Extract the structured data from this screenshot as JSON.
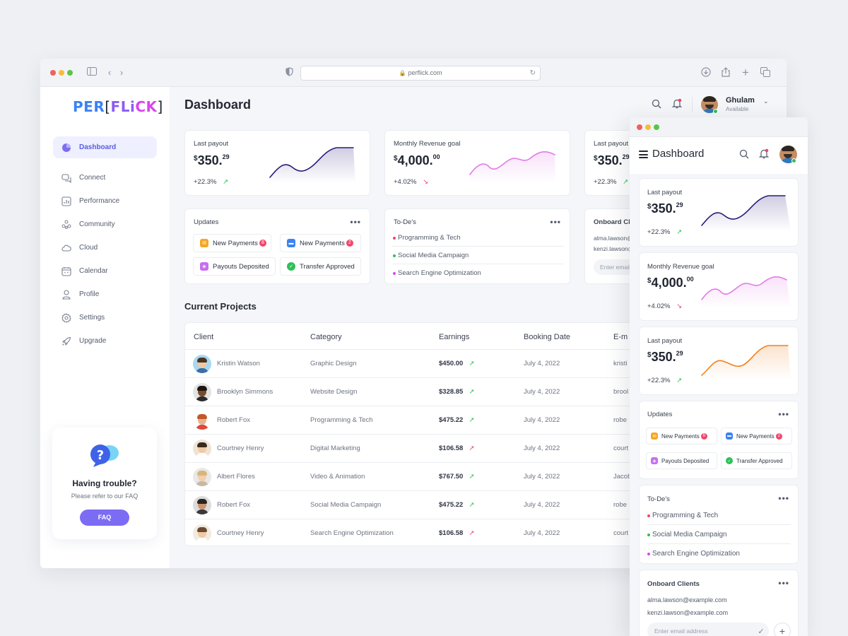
{
  "browser": {
    "url": "perflick.com"
  },
  "brand": {
    "part1": "PER",
    "part2": "FLi",
    "part3": "CK"
  },
  "sidebar": {
    "items": [
      {
        "label": "Dashboard",
        "icon": "pie-chart-icon"
      },
      {
        "label": "Connect",
        "icon": "chat-bubbles-icon"
      },
      {
        "label": "Performance",
        "icon": "bar-chart-icon"
      },
      {
        "label": "Community",
        "icon": "people-icon"
      },
      {
        "label": "Cloud",
        "icon": "cloud-icon"
      },
      {
        "label": "Calendar",
        "icon": "calendar-icon"
      },
      {
        "label": "Profile",
        "icon": "user-icon"
      },
      {
        "label": "Settings",
        "icon": "gear-icon"
      },
      {
        "label": "Upgrade",
        "icon": "rocket-icon"
      }
    ],
    "help": {
      "title": "Having trouble?",
      "text": "Please refer to our FAQ",
      "button": "FAQ"
    }
  },
  "header": {
    "title": "Dashboard",
    "user_name": "Ghulam",
    "user_status": "Available"
  },
  "kpis": [
    {
      "label": "Last payout",
      "currency": "$",
      "whole": "350.",
      "cents": "29",
      "change": "+22.3%",
      "trend": "up",
      "color": "#2a1b7a",
      "trend_color": "#2ec05a"
    },
    {
      "label": "Monthly Revenue goal",
      "currency": "$",
      "whole": "4,000.",
      "cents": "00",
      "change": "+4.02%",
      "trend": "down",
      "color": "#e27ae8",
      "trend_color": "#f0466b"
    },
    {
      "label": "Last payout",
      "currency": "$",
      "whole": "350.",
      "cents": "29",
      "change": "+22.3%",
      "trend": "up",
      "color": "#f0811f",
      "trend_color": "#2ec05a"
    }
  ],
  "updates": {
    "title": "Updates",
    "chips": [
      {
        "label": "New Payments",
        "badge": "8",
        "icon": "mail-icon",
        "color": "#f5a623"
      },
      {
        "label": "New Payments",
        "badge": "2",
        "icon": "card-icon",
        "color": "#3b82f6"
      },
      {
        "label": "Payouts Deposited",
        "icon": "ticket-icon",
        "color": "#c86ef0"
      },
      {
        "label": "Transfer Approved",
        "icon": "check-badge-icon",
        "color": "#2ec05a"
      }
    ]
  },
  "todos": {
    "title": "To-De's",
    "items": [
      {
        "label": "Programming & Tech",
        "color": "#f0466b"
      },
      {
        "label": "Social Media Campaign",
        "color": "#2ec05a"
      },
      {
        "label": "Search Engine Optimization",
        "color": "#d946ef"
      }
    ]
  },
  "onboard": {
    "title_truncated": "Onboard Cli",
    "title": "Onboard Clients",
    "emails_truncated": [
      "alma.lawson@",
      "kenzi.lawson@"
    ],
    "emails": [
      "alma.lawson@example.com",
      "kenzi.lawson@example.com"
    ],
    "placeholder_truncated": "Enter email",
    "placeholder": "Enter email address"
  },
  "projects": {
    "title": "Current Projects",
    "columns": [
      "Client",
      "Category",
      "Earnings",
      "Booking Date",
      "E-m"
    ],
    "rows": [
      {
        "client": "Kristin Watson",
        "category": "Graphic Design",
        "earnings": "$450.00",
        "trend": "up",
        "date": "July 4, 2022",
        "email": "kristi"
      },
      {
        "client": "Brooklyn Simmons",
        "category": "Website Design",
        "earnings": "$328.85",
        "trend": "up",
        "date": "July 4, 2022",
        "email": "brool"
      },
      {
        "client": "Robert Fox",
        "category": "Programming & Tech",
        "earnings": "$475.22",
        "trend": "up",
        "date": "July 4, 2022",
        "email": "robe"
      },
      {
        "client": "Courtney Henry",
        "category": "Digital Marketing",
        "earnings": "$106.58",
        "trend": "down",
        "date": "July 4, 2022",
        "email": "court"
      },
      {
        "client": "Albert Flores",
        "category": "Video & Animation",
        "earnings": "$767.50",
        "trend": "up",
        "date": "July 4, 2022",
        "email": "Jacob"
      },
      {
        "client": "Robert Fox",
        "category": "Social Media Campaign",
        "earnings": "$475.22",
        "trend": "up",
        "date": "July 4, 2022",
        "email": "robe"
      },
      {
        "client": "Courtney Henry",
        "category": "Search Engine Optimization",
        "earnings": "$106.58",
        "trend": "down",
        "date": "July 4, 2022",
        "email": "court"
      }
    ]
  },
  "mobile": {
    "title": "Dashboard"
  }
}
